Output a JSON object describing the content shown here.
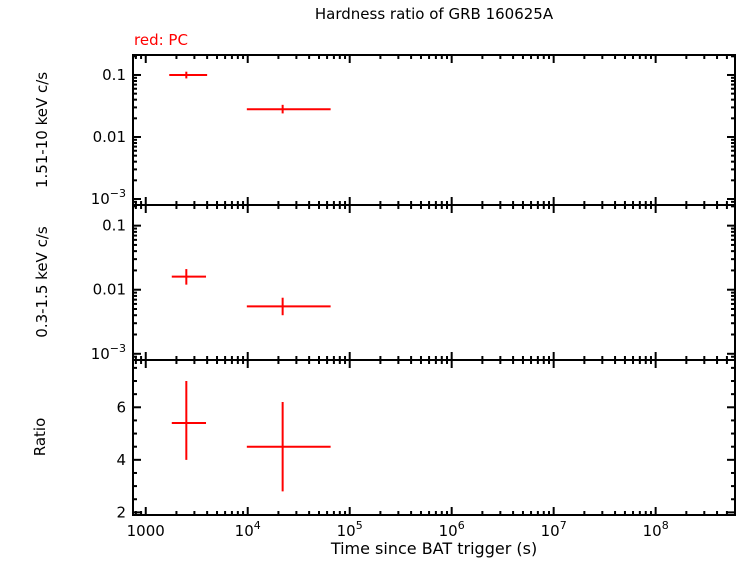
{
  "chart_data": {
    "type": "scatter",
    "title": "Hardness ratio of GRB 160625A",
    "annotation": "red: PC",
    "xlabel": "Time since BAT trigger (s)",
    "color": "#ff0000",
    "frame_color": "#000000",
    "xscale": "log",
    "xlim": [
      750,
      600000000
    ],
    "x_ticks": [
      {
        "v": 1000,
        "text": "1000"
      },
      {
        "v": 10000,
        "text": "10",
        "sup": "4"
      },
      {
        "v": 100000,
        "text": "10",
        "sup": "5"
      },
      {
        "v": 1000000,
        "text": "10",
        "sup": "6"
      },
      {
        "v": 10000000,
        "text": "10",
        "sup": "7"
      },
      {
        "v": 100000000,
        "text": "10",
        "sup": "8"
      }
    ],
    "panels": [
      {
        "name": "hard-band",
        "ylabel": "1.51-10 keV c/s",
        "yscale": "log",
        "ylim": [
          0.0008,
          0.21
        ],
        "y_ticks": [
          {
            "v": 0.1,
            "text": "0.1"
          },
          {
            "v": 0.01,
            "text": "0.01"
          },
          {
            "v": 0.001,
            "text": "10",
            "sup": "−3"
          }
        ],
        "points": [
          {
            "x": 2500,
            "xlo": 1700,
            "xhi": 4000,
            "y": 0.1,
            "ylo": 0.088,
            "yhi": 0.113
          },
          {
            "x": 22000,
            "xlo": 9800,
            "xhi": 65000,
            "y": 0.028,
            "ylo": 0.024,
            "yhi": 0.033
          }
        ]
      },
      {
        "name": "soft-band",
        "ylabel": "0.3-1.5 keV c/s",
        "yscale": "log",
        "ylim": [
          0.0008,
          0.21
        ],
        "y_ticks": [
          {
            "v": 0.1,
            "text": "0.1"
          },
          {
            "v": 0.01,
            "text": "0.01"
          },
          {
            "v": 0.001,
            "text": "10",
            "sup": "−3"
          }
        ],
        "points": [
          {
            "x": 2500,
            "xlo": 1800,
            "xhi": 3900,
            "y": 0.016,
            "ylo": 0.012,
            "yhi": 0.021
          },
          {
            "x": 22000,
            "xlo": 9800,
            "xhi": 65000,
            "y": 0.0055,
            "ylo": 0.004,
            "yhi": 0.0075
          }
        ]
      },
      {
        "name": "ratio",
        "ylabel": "Ratio",
        "yscale": "linear",
        "ylim": [
          1.9,
          7.8
        ],
        "minor_step": 0.5,
        "y_ticks": [
          {
            "v": 2,
            "text": "2"
          },
          {
            "v": 4,
            "text": "4"
          },
          {
            "v": 6,
            "text": "6"
          }
        ],
        "points": [
          {
            "x": 2500,
            "xlo": 1800,
            "xhi": 3900,
            "y": 5.4,
            "ylo": 4.0,
            "yhi": 7.0
          },
          {
            "x": 22000,
            "xlo": 9800,
            "xhi": 65000,
            "y": 4.5,
            "ylo": 2.8,
            "yhi": 6.2
          }
        ]
      }
    ]
  }
}
